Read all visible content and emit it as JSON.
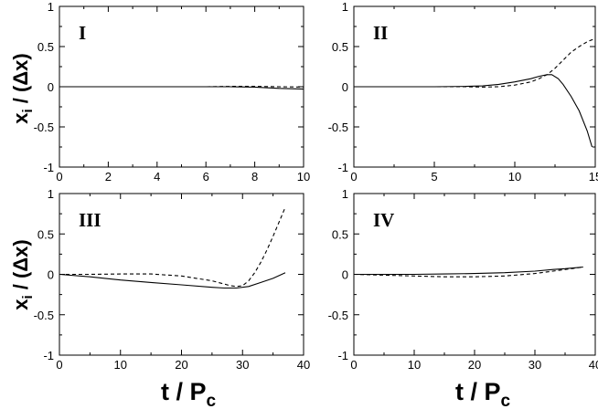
{
  "figure": {
    "ylabel_main": "x",
    "ylabel_sub": "i",
    "ylabel_rest": " / (Δx)",
    "xlabel_main": "t / P",
    "xlabel_sub": "c"
  },
  "chart_data": [
    {
      "type": "line",
      "panel_label": "I",
      "xlim": [
        0,
        10
      ],
      "ylim": [
        -1,
        1
      ],
      "xticks": [
        "0",
        "2",
        "4",
        "6",
        "8",
        "10"
      ],
      "yticks": [
        "-1",
        "-0.5",
        "0",
        "0.5",
        "1"
      ],
      "series": [
        {
          "style": "solid",
          "x": [
            0,
            2,
            4,
            6,
            7,
            8,
            9,
            10
          ],
          "y": [
            0,
            0,
            0,
            0,
            0,
            -0.005,
            -0.02,
            -0.03
          ]
        },
        {
          "style": "dashed",
          "x": [
            0,
            2,
            4,
            6,
            7,
            8,
            9,
            10
          ],
          "y": [
            0,
            0,
            0,
            0,
            0.005,
            0.005,
            0,
            -0.005
          ]
        }
      ]
    },
    {
      "type": "line",
      "panel_label": "II",
      "xlim": [
        0,
        15
      ],
      "ylim": [
        -1,
        1
      ],
      "xticks": [
        "0",
        "5",
        "10",
        "15"
      ],
      "yticks": [
        "-1",
        "-0.5",
        "0",
        "0.5",
        "1"
      ],
      "series": [
        {
          "style": "solid",
          "x": [
            0,
            5,
            7,
            8,
            9,
            10,
            11,
            11.5,
            12,
            12.3,
            12.7,
            13,
            13.5,
            14,
            14.5,
            14.8
          ],
          "y": [
            0,
            0,
            0.005,
            0.01,
            0.03,
            0.06,
            0.1,
            0.13,
            0.15,
            0.15,
            0.1,
            0.03,
            -0.12,
            -0.3,
            -0.55,
            -0.75
          ]
        },
        {
          "style": "dashed",
          "x": [
            0,
            5,
            7,
            8,
            9,
            10,
            11,
            11.5,
            12,
            12.5,
            13,
            13.5,
            14,
            14.5,
            15
          ],
          "y": [
            0,
            0,
            0,
            -0.005,
            0,
            0.02,
            0.06,
            0.1,
            0.15,
            0.23,
            0.33,
            0.43,
            0.5,
            0.56,
            0.6
          ]
        }
      ]
    },
    {
      "type": "line",
      "panel_label": "III",
      "xlim": [
        0,
        40
      ],
      "ylim": [
        -1,
        1
      ],
      "xticks": [
        "0",
        "10",
        "20",
        "30",
        "40"
      ],
      "yticks": [
        "-1",
        "-0.5",
        "0",
        "0.5",
        "1"
      ],
      "series": [
        {
          "style": "solid",
          "x": [
            0,
            5,
            10,
            15,
            20,
            25,
            27,
            29,
            31,
            33,
            35,
            37
          ],
          "y": [
            0,
            -0.03,
            -0.07,
            -0.1,
            -0.13,
            -0.16,
            -0.17,
            -0.17,
            -0.15,
            -0.1,
            -0.05,
            0.02
          ]
        },
        {
          "style": "dashed",
          "x": [
            0,
            5,
            10,
            15,
            20,
            25,
            27,
            28,
            29,
            30,
            31,
            32,
            33,
            34,
            35,
            36,
            37
          ],
          "y": [
            0,
            0,
            0.005,
            0.005,
            -0.02,
            -0.08,
            -0.12,
            -0.14,
            -0.15,
            -0.14,
            -0.08,
            0.02,
            0.15,
            0.3,
            0.47,
            0.65,
            0.83
          ]
        }
      ]
    },
    {
      "type": "line",
      "panel_label": "IV",
      "xlim": [
        0,
        40
      ],
      "ylim": [
        -1,
        1
      ],
      "xticks": [
        "0",
        "10",
        "20",
        "30",
        "40"
      ],
      "yticks": [
        "-1",
        "-0.5",
        "0",
        "0.5",
        "1"
      ],
      "series": [
        {
          "style": "solid",
          "x": [
            0,
            5,
            10,
            15,
            20,
            25,
            30,
            33,
            35,
            38
          ],
          "y": [
            0,
            0,
            0,
            0.005,
            0.01,
            0.02,
            0.04,
            0.06,
            0.07,
            0.09
          ]
        },
        {
          "style": "dashed",
          "x": [
            0,
            5,
            10,
            15,
            20,
            25,
            30,
            33,
            35,
            38
          ],
          "y": [
            0,
            -0.01,
            -0.02,
            -0.03,
            -0.03,
            -0.02,
            0.01,
            0.04,
            0.06,
            0.09
          ]
        }
      ]
    }
  ]
}
